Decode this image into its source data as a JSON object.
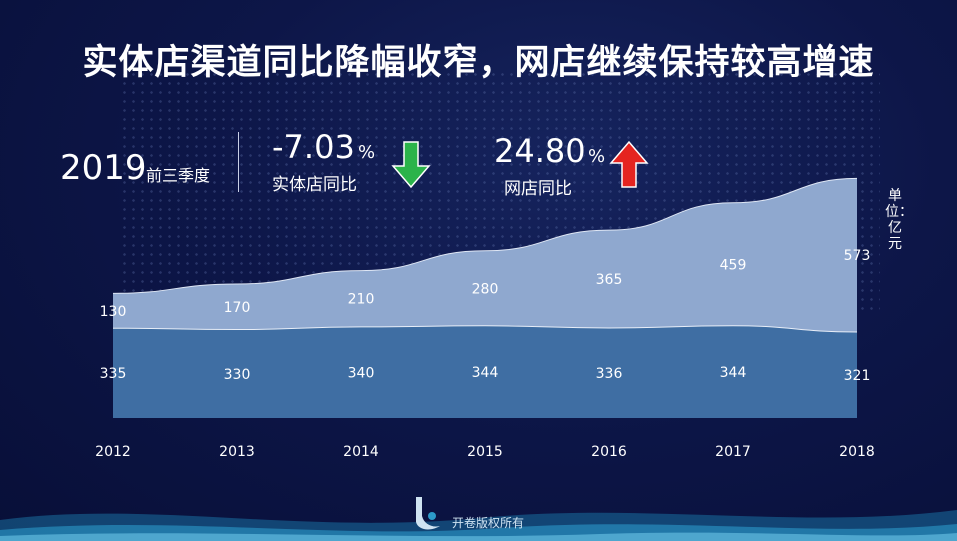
{
  "title": "实体店渠道同比降幅收窄，网店继续保持较高增速",
  "stats": {
    "year": "2019",
    "year_sub": "前三季度",
    "offline_value": "-7.03",
    "offline_pct": "%",
    "offline_label": "实体店同比",
    "online_value": "24.80",
    "online_pct": "%",
    "online_label": "网店同比"
  },
  "unit_label": "单位：亿元",
  "footer": "开卷版权所有",
  "colors": {
    "offline_area": "#3f6ea3",
    "online_area": "#8fa8cf",
    "down_arrow": "#2bb34a",
    "up_arrow": "#e52420"
  },
  "chart_data": {
    "type": "area",
    "stacked": true,
    "categories": [
      "2012",
      "2013",
      "2014",
      "2015",
      "2016",
      "2017",
      "2018"
    ],
    "series": [
      {
        "values": [
          335,
          330,
          340,
          344,
          336,
          344,
          321
        ]
      },
      {
        "values": [
          130,
          170,
          210,
          280,
          365,
          459,
          573
        ]
      }
    ]
  }
}
